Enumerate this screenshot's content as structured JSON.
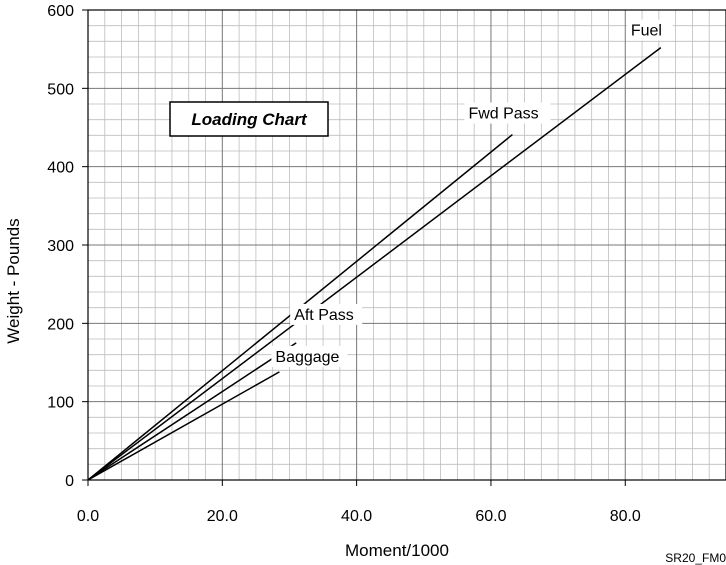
{
  "chart_data": {
    "type": "line",
    "title": "Loading Chart",
    "xlabel": "Moment/1000",
    "ylabel": "Weight - Pounds",
    "xlim": [
      0,
      95
    ],
    "ylim": [
      0,
      600
    ],
    "x_ticks": [
      "0.0",
      "20.0",
      "40.0",
      "60.0",
      "80.0"
    ],
    "y_ticks": [
      "0",
      "100",
      "200",
      "300",
      "400",
      "500",
      "600"
    ],
    "grid": true,
    "series": [
      {
        "name": "Fuel",
        "x": [
          0,
          85.3
        ],
        "y": [
          0,
          552
        ]
      },
      {
        "name": "Fwd Pass",
        "x": [
          0,
          63.2
        ],
        "y": [
          0,
          441
        ]
      },
      {
        "name": "Aft Pass",
        "x": [
          0,
          31.0
        ],
        "y": [
          0,
          175
        ]
      },
      {
        "name": "Baggage",
        "x": [
          0,
          28.5
        ],
        "y": [
          0,
          138
        ]
      }
    ],
    "figure_id": "SR20_FM0"
  }
}
